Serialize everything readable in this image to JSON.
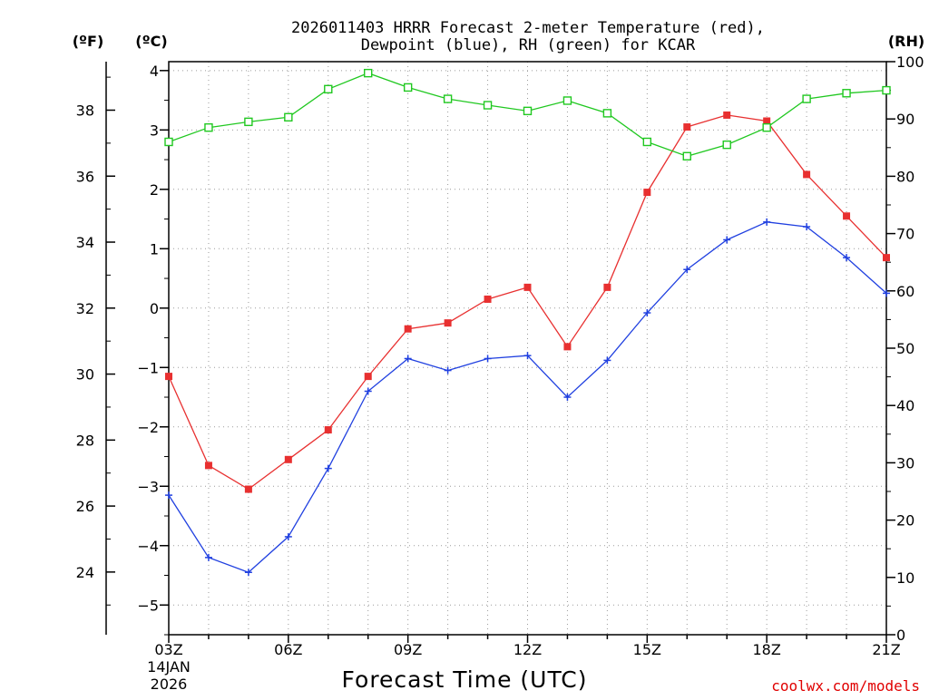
{
  "chart_data": {
    "type": "line",
    "title_line1": "2026011403 HRRR Forecast 2-meter Temperature (red),",
    "title_line2": "Dewpoint (blue), RH (green) for KCAR",
    "unit_f": "(ºF)",
    "unit_c": "(ºC)",
    "unit_rh": "(RH)",
    "xlabel": "Forecast Time (UTC)",
    "credit": "coolwx.com/models",
    "x_hours": [
      3,
      4,
      5,
      6,
      7,
      8,
      9,
      10,
      11,
      12,
      13,
      14,
      15,
      16,
      17,
      18,
      19,
      20,
      21
    ],
    "xlim": [
      3,
      21
    ],
    "x_ticks": [
      {
        "hour": 3,
        "label": "03Z"
      },
      {
        "hour": 6,
        "label": "06Z"
      },
      {
        "hour": 9,
        "label": "09Z"
      },
      {
        "hour": 12,
        "label": "12Z"
      },
      {
        "hour": 15,
        "label": "15Z"
      },
      {
        "hour": 18,
        "label": "18Z"
      },
      {
        "hour": 21,
        "label": "21Z"
      }
    ],
    "date_label_line1": "14JAN",
    "date_label_line2": "2026",
    "y_c_lim": [
      -5.5,
      4.15
    ],
    "y_c_ticks": [
      {
        "v": 4,
        "label": "4"
      },
      {
        "v": 3,
        "label": "3"
      },
      {
        "v": 2,
        "label": "2"
      },
      {
        "v": 1,
        "label": "1"
      },
      {
        "v": 0,
        "label": "0"
      },
      {
        "v": -1,
        "label": "−1"
      },
      {
        "v": -2,
        "label": "−2"
      },
      {
        "v": -3,
        "label": "−3"
      },
      {
        "v": -4,
        "label": "−4"
      },
      {
        "v": -5,
        "label": "−5"
      }
    ],
    "y_f_ticks": [
      {
        "v": 38,
        "label": "38"
      },
      {
        "v": 36,
        "label": "36"
      },
      {
        "v": 34,
        "label": "34"
      },
      {
        "v": 32,
        "label": "32"
      },
      {
        "v": 30,
        "label": "30"
      },
      {
        "v": 28,
        "label": "28"
      },
      {
        "v": 26,
        "label": "26"
      },
      {
        "v": 24,
        "label": "24"
      }
    ],
    "y_rh_lim": [
      0,
      100
    ],
    "y_rh_ticks": [
      {
        "v": 100,
        "label": "100"
      },
      {
        "v": 90,
        "label": "90"
      },
      {
        "v": 80,
        "label": "80"
      },
      {
        "v": 70,
        "label": "70"
      },
      {
        "v": 60,
        "label": "60"
      },
      {
        "v": 50,
        "label": "50"
      },
      {
        "v": 40,
        "label": "40"
      },
      {
        "v": 30,
        "label": "30"
      },
      {
        "v": 20,
        "label": "20"
      },
      {
        "v": 10,
        "label": "10"
      },
      {
        "v": 0,
        "label": "0"
      }
    ],
    "grid": true,
    "series": [
      {
        "name": "Temperature",
        "axis": "celsius",
        "color": "#e83030",
        "marker": "filled-square",
        "values": [
          -1.15,
          -2.65,
          -3.05,
          -2.55,
          -2.05,
          -1.15,
          -0.35,
          -0.25,
          0.15,
          0.35,
          -0.65,
          0.35,
          1.95,
          3.05,
          3.25,
          3.15,
          2.25,
          1.55,
          0.85
        ]
      },
      {
        "name": "Dewpoint",
        "axis": "celsius",
        "color": "#2040e0",
        "marker": "plus",
        "values": [
          -3.15,
          -4.2,
          -4.45,
          -3.85,
          -2.7,
          -1.4,
          -0.85,
          -1.05,
          -0.85,
          -0.8,
          -1.5,
          -0.88,
          -0.08,
          0.65,
          1.15,
          1.45,
          1.37,
          0.85,
          0.25
        ]
      },
      {
        "name": "RH",
        "axis": "rh",
        "color": "#20c820",
        "marker": "open-square",
        "values": [
          86,
          88.5,
          89.5,
          90.3,
          95.2,
          98,
          95.5,
          93.5,
          92.4,
          91.4,
          93.2,
          91,
          86,
          83.5,
          85.5,
          88.5,
          93.5,
          94.5,
          95
        ]
      }
    ]
  }
}
